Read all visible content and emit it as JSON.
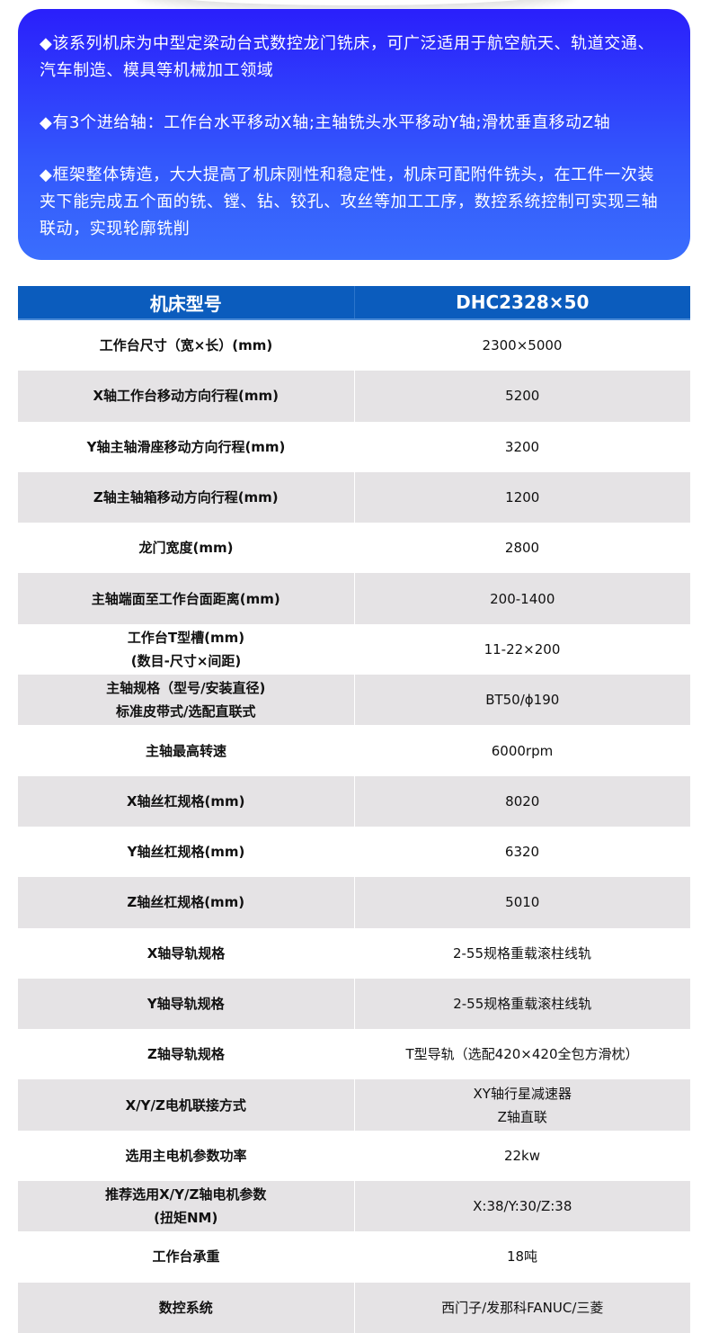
{
  "intro": {
    "paragraphs": [
      "◆该系列机床为中型定梁动台式数控龙门铣床，可广泛适用于航空航天、轨道交通、汽车制造、模具等机械加工领域",
      "◆有3个进给轴：工作台水平移动X轴;主轴铣头水平移动Y轴;滑枕垂直移动Z轴",
      "◆框架整体铸造，大大提高了机床刚性和稳定性，机床可配附件铣头，在工件一次装夹下能完成五个面的铣、镗、钻、铰孔、攻丝等加工工序，数控系统控制可实现三轴联动，实现轮廓铣削"
    ]
  },
  "table": {
    "headers": [
      "机床型号",
      "DHC2328×50"
    ],
    "rows": [
      [
        "工作台尺寸（宽×长）(mm)",
        "2300×5000"
      ],
      [
        "X轴工作台移动方向行程(mm)",
        "5200"
      ],
      [
        "Y轴主轴滑座移动方向行程(mm)",
        "3200"
      ],
      [
        "Z轴主轴箱移动方向行程(mm)",
        "1200"
      ],
      [
        "龙门宽度(mm)",
        "2800"
      ],
      [
        "主轴端面至工作台面距离(mm)",
        "200-1400"
      ],
      [
        "工作台T型槽(mm)\n(数目-尺寸×间距)",
        "11-22×200"
      ],
      [
        "主轴规格（型号/安装直径)\n标准皮带式/选配直联式",
        "BT50/ϕ190"
      ],
      [
        "主轴最高转速",
        "6000rpm"
      ],
      [
        "X轴丝杠规格(mm)",
        "8020"
      ],
      [
        "Y轴丝杠规格(mm)",
        "6320"
      ],
      [
        "Z轴丝杠规格(mm)",
        "5010"
      ],
      [
        "X轴导轨规格",
        "2-55规格重载滚柱线轨"
      ],
      [
        "Y轴导轨规格",
        "2-55规格重载滚柱线轨"
      ],
      [
        "Z轴导轨规格",
        "T型导轨（选配420×420全包方滑枕）"
      ],
      [
        "X/Y/Z电机联接方式",
        "XY轴行星减速器\nZ轴直联"
      ],
      [
        "选用主电机参数功率",
        "22kw"
      ],
      [
        "推荐选用X/Y/Z轴电机参数\n(扭矩NM)",
        "X:38/Y:30/Z:38"
      ],
      [
        "工作台承重",
        "18吨"
      ],
      [
        "数控系统",
        "西门子/发那科FANUC/三菱"
      ]
    ]
  },
  "colors": {
    "header": "#0b5cbd",
    "gradient_top": "#2a1ffb",
    "gradient_bottom": "#3a6efd",
    "row_alt": "#e5e3e5"
  }
}
